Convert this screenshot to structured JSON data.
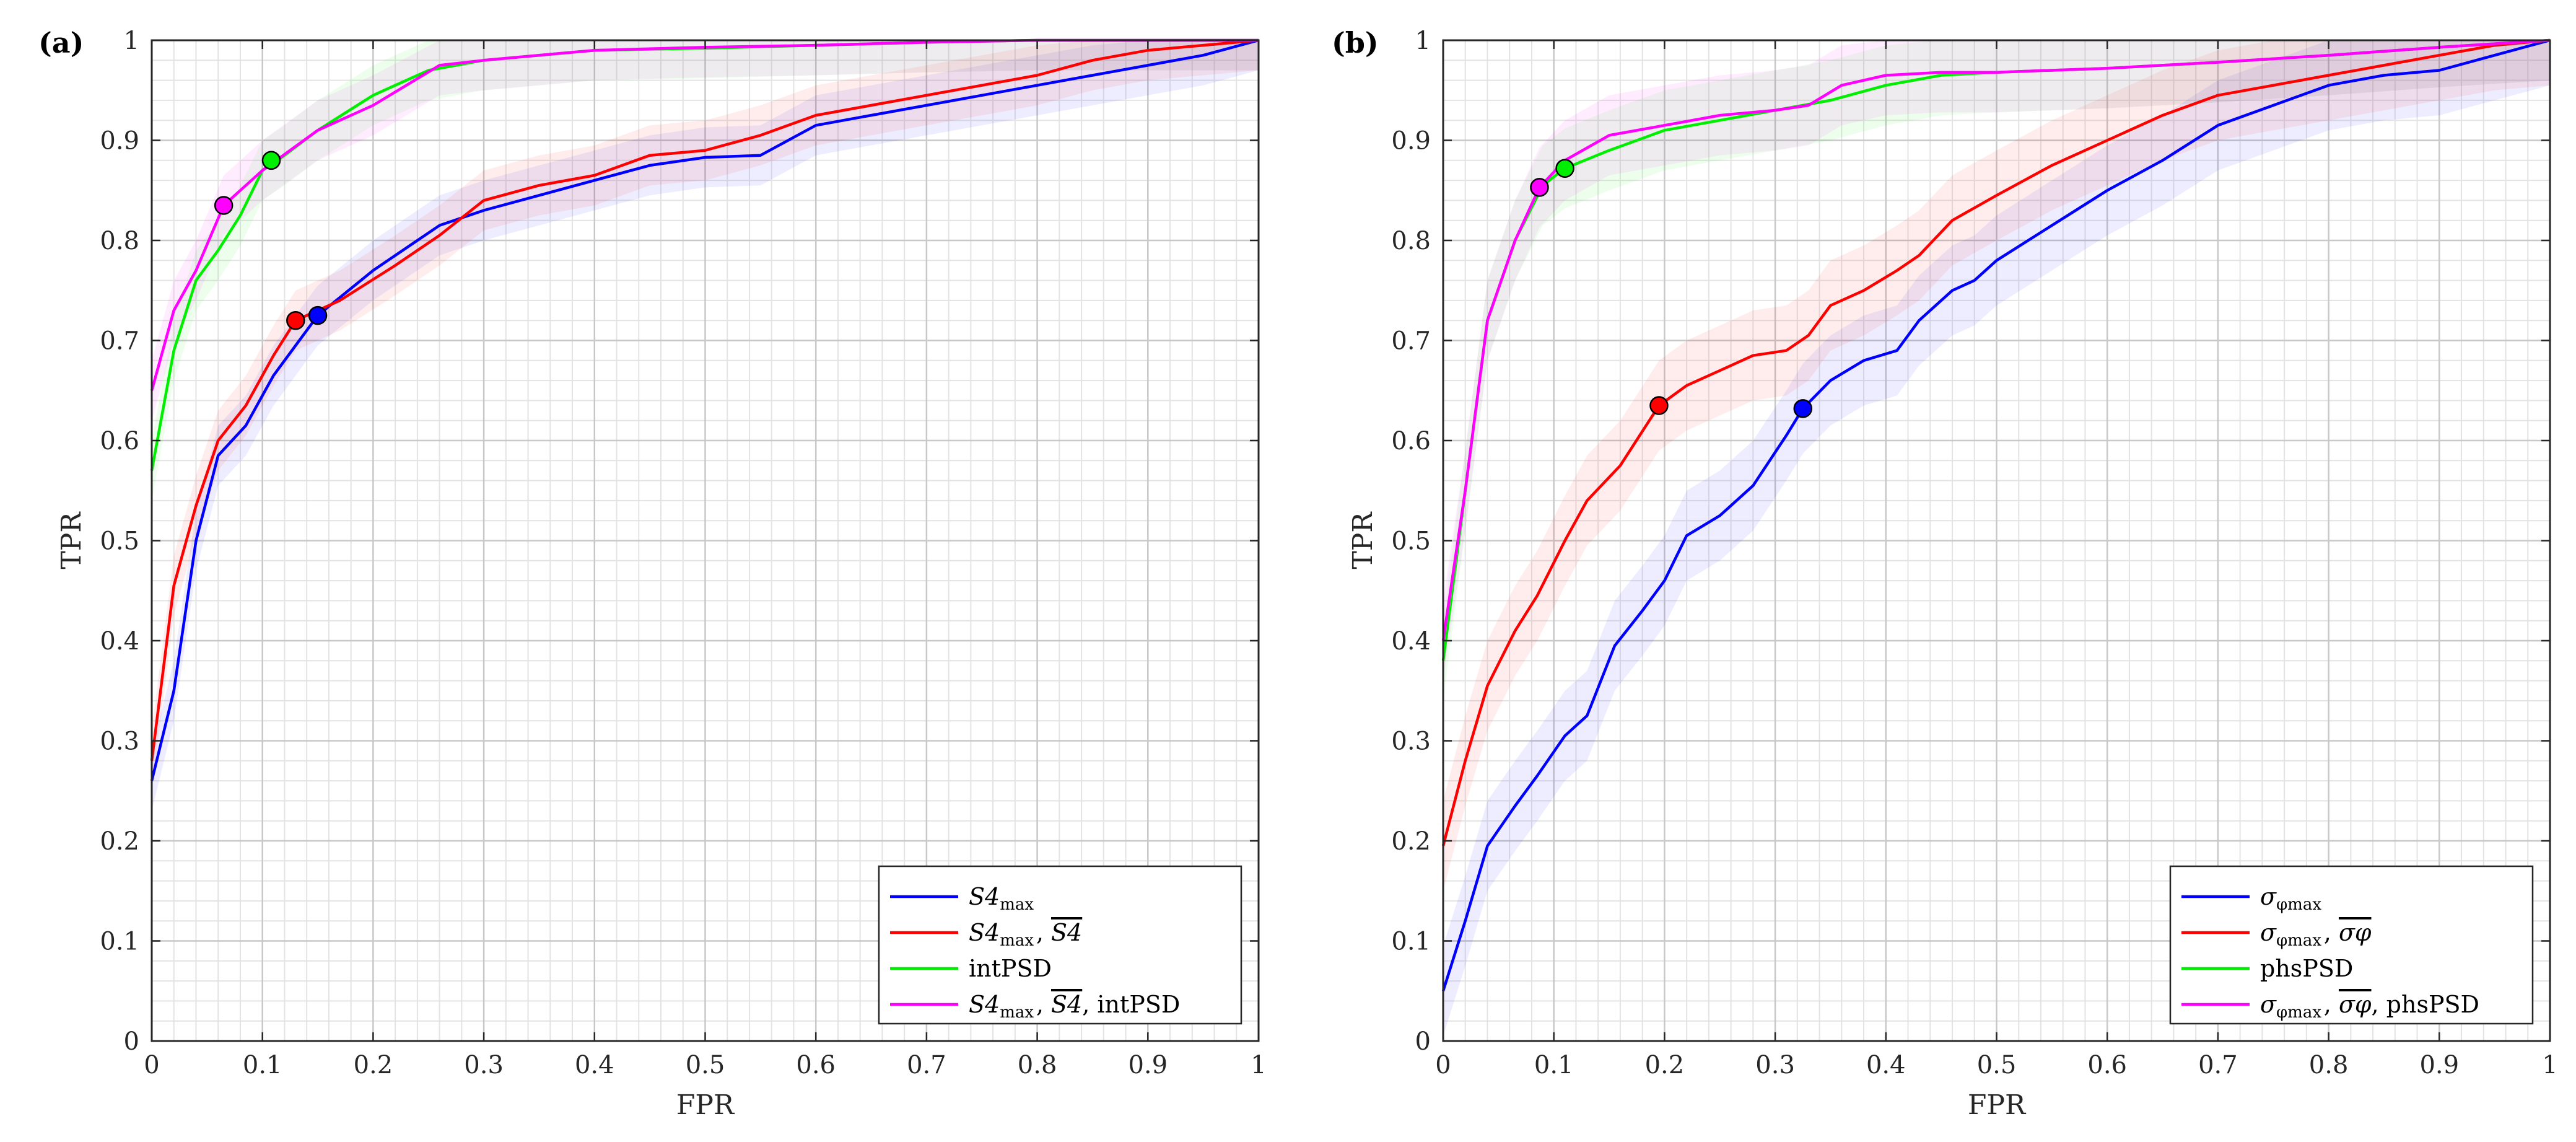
{
  "chart_data": [
    {
      "panel": "(a)",
      "type": "line",
      "xlabel": "FPR",
      "ylabel": "TPR",
      "xlim": [
        0,
        1
      ],
      "ylim": [
        0,
        1
      ],
      "xticks": [
        "0",
        "0.1",
        "0.2",
        "0.3",
        "0.4",
        "0.5",
        "0.6",
        "0.7",
        "0.8",
        "0.9",
        "1"
      ],
      "yticks": [
        "0",
        "0.1",
        "0.2",
        "0.3",
        "0.4",
        "0.5",
        "0.6",
        "0.7",
        "0.8",
        "0.9",
        "1"
      ],
      "grid": "major and minor",
      "legend_position": "bottom-right",
      "series": [
        {
          "name": "S4max",
          "legend": {
            "main": "S4",
            "sub": "max",
            "rest": ""
          },
          "color": "#0000ff",
          "band": 0.03,
          "marker": [
            0.15,
            0.725
          ],
          "x": [
            0,
            0.02,
            0.04,
            0.06,
            0.085,
            0.11,
            0.15,
            0.2,
            0.26,
            0.3,
            0.35,
            0.4,
            0.45,
            0.5,
            0.55,
            0.6,
            0.65,
            0.7,
            0.75,
            0.8,
            0.85,
            0.9,
            0.95,
            1
          ],
          "y": [
            0.26,
            0.35,
            0.5,
            0.585,
            0.615,
            0.665,
            0.725,
            0.77,
            0.815,
            0.83,
            0.845,
            0.86,
            0.875,
            0.883,
            0.885,
            0.915,
            0.925,
            0.935,
            0.945,
            0.955,
            0.965,
            0.975,
            0.985,
            1
          ]
        },
        {
          "name": "S4max, S4bar",
          "legend": {
            "main": "S4",
            "sub": "max",
            "rest": ", ",
            "bar": "S4",
            "rest2": ""
          },
          "color": "#ff0000",
          "band": 0.03,
          "marker": [
            0.13,
            0.72
          ],
          "x": [
            0,
            0.02,
            0.04,
            0.06,
            0.085,
            0.11,
            0.13,
            0.17,
            0.22,
            0.26,
            0.3,
            0.35,
            0.4,
            0.45,
            0.5,
            0.55,
            0.6,
            0.65,
            0.7,
            0.75,
            0.8,
            0.85,
            0.9,
            0.95,
            1
          ],
          "y": [
            0.28,
            0.455,
            0.535,
            0.6,
            0.635,
            0.685,
            0.72,
            0.74,
            0.775,
            0.805,
            0.84,
            0.855,
            0.865,
            0.885,
            0.89,
            0.905,
            0.925,
            0.935,
            0.945,
            0.955,
            0.965,
            0.98,
            0.99,
            0.995,
            1
          ]
        },
        {
          "name": "intPSD",
          "legend": {
            "main": "intPSD",
            "sub": "",
            "rest": ""
          },
          "color": "#00ee00",
          "band": 0.03,
          "marker": [
            0.108,
            0.88
          ],
          "x": [
            0,
            0.02,
            0.04,
            0.06,
            0.08,
            0.1,
            0.12,
            0.15,
            0.2,
            0.25,
            0.3,
            0.35,
            0.4,
            0.5,
            0.6,
            0.7,
            0.8,
            0.9,
            1
          ],
          "y": [
            0.57,
            0.69,
            0.76,
            0.79,
            0.825,
            0.87,
            0.885,
            0.91,
            0.945,
            0.97,
            0.98,
            0.985,
            0.99,
            0.992,
            0.995,
            0.998,
            1,
            1,
            1
          ]
        },
        {
          "name": "S4max, S4bar, intPSD",
          "legend": {
            "main": "S4",
            "sub": "max",
            "rest": ", ",
            "bar": "S4",
            "rest2": ", intPSD"
          },
          "color": "#ff00ff",
          "band": 0.03,
          "marker": [
            0.065,
            0.835
          ],
          "x": [
            0,
            0.02,
            0.04,
            0.065,
            0.1,
            0.15,
            0.2,
            0.26,
            0.3,
            0.35,
            0.4,
            0.5,
            0.6,
            0.7,
            0.8,
            0.9,
            1
          ],
          "y": [
            0.65,
            0.73,
            0.77,
            0.835,
            0.87,
            0.91,
            0.935,
            0.975,
            0.98,
            0.985,
            0.99,
            0.993,
            0.995,
            0.998,
            1,
            1,
            1
          ]
        }
      ]
    },
    {
      "panel": "(b)",
      "type": "line",
      "xlabel": "FPR",
      "ylabel": "TPR",
      "xlim": [
        0,
        1
      ],
      "ylim": [
        0,
        1
      ],
      "xticks": [
        "0",
        "0.1",
        "0.2",
        "0.3",
        "0.4",
        "0.5",
        "0.6",
        "0.7",
        "0.8",
        "0.9",
        "1"
      ],
      "yticks": [
        "0",
        "0.1",
        "0.2",
        "0.3",
        "0.4",
        "0.5",
        "0.6",
        "0.7",
        "0.8",
        "0.9",
        "1"
      ],
      "grid": "major and minor",
      "legend_position": "bottom-right",
      "series": [
        {
          "name": "σφmax",
          "legend": {
            "main": "σ",
            "sub": "φmax",
            "rest": ""
          },
          "color": "#0000ff",
          "band": 0.045,
          "marker": [
            0.325,
            0.632
          ],
          "x": [
            0,
            0.02,
            0.04,
            0.065,
            0.085,
            0.11,
            0.13,
            0.155,
            0.18,
            0.2,
            0.22,
            0.25,
            0.28,
            0.31,
            0.325,
            0.35,
            0.38,
            0.41,
            0.43,
            0.46,
            0.48,
            0.5,
            0.55,
            0.6,
            0.65,
            0.7,
            0.75,
            0.8,
            0.85,
            0.9,
            0.95,
            1
          ],
          "y": [
            0.05,
            0.12,
            0.195,
            0.235,
            0.265,
            0.305,
            0.325,
            0.395,
            0.43,
            0.46,
            0.505,
            0.525,
            0.555,
            0.605,
            0.632,
            0.66,
            0.68,
            0.69,
            0.72,
            0.75,
            0.76,
            0.78,
            0.815,
            0.85,
            0.88,
            0.915,
            0.935,
            0.955,
            0.965,
            0.97,
            0.985,
            1
          ]
        },
        {
          "name": "σφmax, σφbar",
          "legend": {
            "main": "σ",
            "sub": "φmax",
            "rest": ", ",
            "bar": "σφ",
            "rest2": ""
          },
          "color": "#ff0000",
          "band": 0.045,
          "marker": [
            0.195,
            0.635
          ],
          "x": [
            0,
            0.02,
            0.04,
            0.065,
            0.085,
            0.11,
            0.13,
            0.16,
            0.195,
            0.22,
            0.25,
            0.28,
            0.31,
            0.33,
            0.35,
            0.38,
            0.41,
            0.43,
            0.46,
            0.5,
            0.55,
            0.6,
            0.65,
            0.7,
            0.75,
            0.8,
            0.85,
            0.9,
            0.95,
            1
          ],
          "y": [
            0.195,
            0.28,
            0.355,
            0.41,
            0.445,
            0.5,
            0.54,
            0.575,
            0.635,
            0.655,
            0.67,
            0.685,
            0.69,
            0.705,
            0.735,
            0.75,
            0.77,
            0.785,
            0.82,
            0.845,
            0.875,
            0.9,
            0.925,
            0.945,
            0.955,
            0.965,
            0.975,
            0.985,
            0.995,
            1
          ]
        },
        {
          "name": "phsPSD",
          "legend": {
            "main": "phsPSD",
            "sub": "",
            "rest": ""
          },
          "color": "#00ee00",
          "band": 0.04,
          "marker": [
            0.11,
            0.872
          ],
          "x": [
            0,
            0.02,
            0.04,
            0.065,
            0.09,
            0.11,
            0.15,
            0.2,
            0.25,
            0.3,
            0.35,
            0.4,
            0.45,
            0.5,
            0.6,
            0.7,
            0.8,
            0.9,
            1
          ],
          "y": [
            0.38,
            0.55,
            0.72,
            0.8,
            0.855,
            0.872,
            0.89,
            0.91,
            0.92,
            0.93,
            0.94,
            0.955,
            0.965,
            0.968,
            0.972,
            0.978,
            0.985,
            0.993,
            1
          ]
        },
        {
          "name": "σφmax, σφbar, phsPSD",
          "legend": {
            "main": "σ",
            "sub": "φmax",
            "rest": ", ",
            "bar": "σφ",
            "rest2": ", phsPSD"
          },
          "color": "#ff00ff",
          "band": 0.04,
          "marker": [
            0.087,
            0.853
          ],
          "x": [
            0,
            0.02,
            0.04,
            0.065,
            0.087,
            0.11,
            0.15,
            0.2,
            0.25,
            0.3,
            0.33,
            0.36,
            0.4,
            0.45,
            0.5,
            0.6,
            0.7,
            0.8,
            0.9,
            1
          ],
          "y": [
            0.4,
            0.55,
            0.72,
            0.8,
            0.853,
            0.88,
            0.905,
            0.915,
            0.925,
            0.93,
            0.935,
            0.955,
            0.965,
            0.968,
            0.968,
            0.972,
            0.978,
            0.985,
            0.993,
            1
          ]
        }
      ]
    }
  ]
}
